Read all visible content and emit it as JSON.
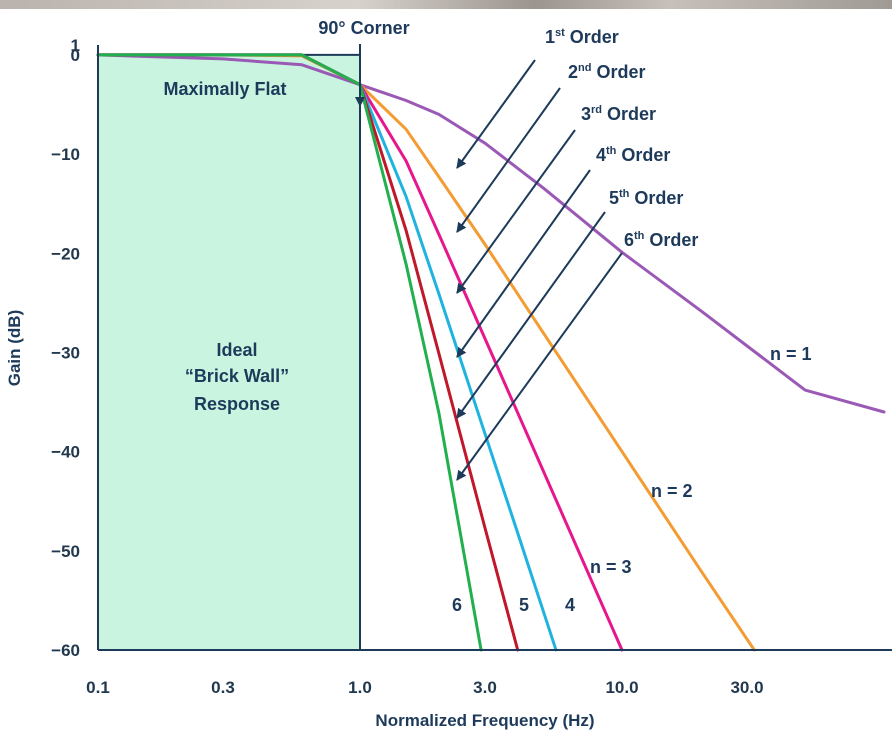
{
  "chart_data": {
    "type": "line",
    "xlabel": "Normalized Frequency (Hz)",
    "ylabel": "Gain (dB)",
    "x_scale": "log",
    "xlim": [
      0.1,
      100
    ],
    "ylim": [
      -60,
      1
    ],
    "x_ticks": [
      "0.1",
      "0.3",
      "1.0",
      "3.0",
      "10.0",
      "30.0"
    ],
    "y_ticks": [
      "1",
      "0",
      "−10",
      "−20",
      "−30",
      "−40",
      "−50",
      "−60"
    ],
    "grid": false,
    "series": [
      {
        "order": 1,
        "color": "#9b59b6",
        "x": [
          0.1,
          0.3,
          0.6,
          1.0,
          1.5,
          2.0,
          3.0,
          5.0,
          10.0,
          20.0,
          50.0,
          100.0
        ],
        "y": [
          0,
          -0.4,
          -1.0,
          -3.0,
          -4.6,
          -6.0,
          -8.9,
          -13.4,
          -19.9,
          -25.8,
          -33.8,
          -36
        ]
      },
      {
        "order": 2,
        "color": "#f39c33",
        "x": [
          0.1,
          0.3,
          0.6,
          1.0,
          1.5,
          2.0,
          3.0,
          5.0,
          10.0,
          20.0,
          32.0
        ],
        "y": [
          0,
          0,
          -0.1,
          -3.0,
          -7.5,
          -12.3,
          -19.1,
          -28.0,
          -40.0,
          -52.0,
          -60
        ]
      },
      {
        "order": 3,
        "color": "#e6178c",
        "x": [
          0.1,
          0.3,
          0.6,
          1.0,
          1.5,
          2.0,
          3.0,
          5.0,
          10.0
        ],
        "y": [
          0,
          0,
          0,
          -3.0,
          -10.7,
          -18.1,
          -28.6,
          -41.9,
          -60
        ]
      },
      {
        "order": 4,
        "color": "#1fb4e0",
        "x": [
          0.1,
          0.3,
          0.6,
          1.0,
          1.5,
          2.0,
          3.0,
          4.0,
          5.6
        ],
        "y": [
          0,
          0,
          0,
          -3.0,
          -14.3,
          -24.1,
          -38.2,
          -48.2,
          -60
        ]
      },
      {
        "order": 5,
        "color": "#c0182a",
        "x": [
          0.1,
          0.3,
          0.6,
          1.0,
          1.5,
          2.0,
          3.0,
          4.0
        ],
        "y": [
          0,
          0,
          0,
          -3.0,
          -17.7,
          -30.1,
          -47.7,
          -60
        ]
      },
      {
        "order": 6,
        "color": "#22b04f",
        "x": [
          0.1,
          0.3,
          0.6,
          1.0,
          1.5,
          2.0,
          2.9
        ],
        "y": [
          0,
          0,
          0,
          -3.0,
          -21.1,
          -36.1,
          -60
        ]
      }
    ],
    "ideal_region": {
      "label_lines": [
        "Ideal",
        "“Brick Wall”",
        "Response"
      ],
      "x_end": 1.0,
      "fill": "#c9f5e0"
    },
    "annotations": {
      "corner_label": "90° Corner",
      "flat_label": "Maximally Flat",
      "order_labels": [
        {
          "num": "1",
          "sup": "st",
          "word": " Order"
        },
        {
          "num": "2",
          "sup": "nd",
          "word": " Order"
        },
        {
          "num": "3",
          "sup": "rd",
          "word": " Order"
        },
        {
          "num": "4",
          "sup": "th",
          "word": " Order"
        },
        {
          "num": "5",
          "sup": "th",
          "word": " Order"
        },
        {
          "num": "6",
          "sup": "th",
          "word": " Order"
        }
      ],
      "curve_labels": [
        "n = 1",
        "n = 2",
        "n = 3",
        "4",
        "5",
        "6"
      ]
    }
  }
}
